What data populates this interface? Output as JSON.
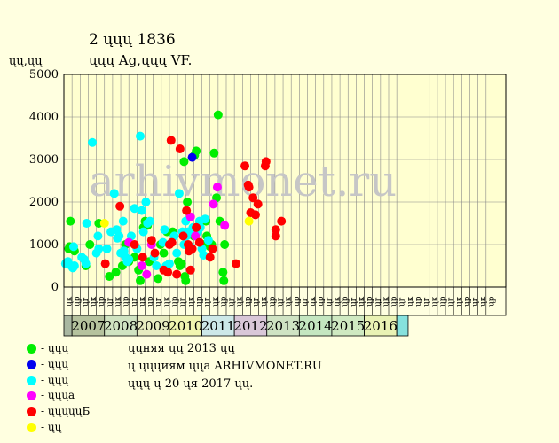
{
  "header": {
    "title": "2 ųųų 1836",
    "subtitle": "ųųų Ag,ųųų VF."
  },
  "chart_data": {
    "type": "scatter",
    "ylabel": "ųų,ųų",
    "ylim": [
      0,
      5000
    ],
    "yticks": [
      0,
      1000,
      2000,
      3000,
      4000,
      5000
    ],
    "watermark": "arhivmonet.ru",
    "grid": true,
    "month_labels": [
      "ųк",
      "ųр",
      "ųг",
      "ųк",
      "ųр",
      "ųг",
      "ųк",
      "ųр",
      "ųг",
      "ųк",
      "ųр",
      "ųг",
      "ųк",
      "ųр",
      "ųг",
      "ųк",
      "ųр",
      "ųг",
      "ųк",
      "ųр",
      "ųг",
      "ųк",
      "ųр",
      "ųг",
      "ųк",
      "ųр",
      "ųг",
      "ųк",
      "ųр",
      "ųг",
      "ųк",
      "ųр",
      "ųг",
      "ųк",
      "ųр",
      "ųг",
      "ųк",
      "ųр",
      "ųг",
      "ųк",
      "ųр",
      "ųг",
      "ųк",
      "ųр",
      "ųг",
      "ųк",
      "ųр",
      "ųг",
      "ųк",
      "ųр",
      "ųг",
      "ųк",
      "ųр"
    ],
    "year_bands": [
      {
        "label": "",
        "from": 0,
        "to": 1,
        "color": "#a9b7a1"
      },
      {
        "label": "2007",
        "from": 1,
        "to": 5,
        "color": "#b5c29e"
      },
      {
        "label": "2008",
        "from": 5,
        "to": 9,
        "color": "#cfe3c1"
      },
      {
        "label": "2009",
        "from": 9,
        "to": 13,
        "color": "#e6ebc0"
      },
      {
        "label": "2010",
        "from": 13,
        "to": 17,
        "color": "#f1f5b0"
      },
      {
        "label": "2011",
        "from": 17,
        "to": 21,
        "color": "#cde8e8"
      },
      {
        "label": "2012",
        "from": 21,
        "to": 25,
        "color": "#d9c7d8"
      },
      {
        "label": "2013",
        "from": 25,
        "to": 29,
        "color": "#cfe3c3"
      },
      {
        "label": "2014",
        "from": 29,
        "to": 33,
        "color": "#c4e6c0"
      },
      {
        "label": "2015",
        "from": 33,
        "to": 37,
        "color": "#cfe9c1"
      },
      {
        "label": "2016",
        "from": 37,
        "to": 41,
        "color": "#e9f2b4"
      },
      {
        "label": "",
        "from": 41,
        "to": 42.4,
        "color": "#86e1dd"
      }
    ],
    "series": [
      {
        "name": "- ųųų",
        "color": "#00ee00",
        "points": [
          [
            0.6,
            900
          ],
          [
            0.7,
            950
          ],
          [
            0.8,
            1550
          ],
          [
            1.3,
            850
          ],
          [
            2.7,
            500
          ],
          [
            3.2,
            1000
          ],
          [
            4.3,
            1500
          ],
          [
            5.6,
            250
          ],
          [
            6.4,
            350
          ],
          [
            7.2,
            500
          ],
          [
            7.6,
            1000
          ],
          [
            8.0,
            600
          ],
          [
            8.7,
            700
          ],
          [
            9.2,
            400
          ],
          [
            9.4,
            150
          ],
          [
            9.8,
            1400
          ],
          [
            10.0,
            1550
          ],
          [
            10.3,
            1450
          ],
          [
            10.5,
            600
          ],
          [
            11.6,
            200
          ],
          [
            11.9,
            1000
          ],
          [
            12.3,
            800
          ],
          [
            12.7,
            1300
          ],
          [
            13.4,
            1300
          ],
          [
            14.1,
            600
          ],
          [
            14.3,
            500
          ],
          [
            14.5,
            550
          ],
          [
            14.8,
            2950
          ],
          [
            14.9,
            250
          ],
          [
            15.0,
            150
          ],
          [
            15.2,
            2000
          ],
          [
            15.5,
            900
          ],
          [
            15.7,
            1300
          ],
          [
            16.0,
            1200
          ],
          [
            16.1,
            3100
          ],
          [
            16.3,
            3200
          ],
          [
            17.1,
            1000
          ],
          [
            17.5,
            1550
          ],
          [
            17.6,
            1200
          ],
          [
            17.9,
            1050
          ],
          [
            18.0,
            950
          ],
          [
            18.2,
            1000
          ],
          [
            18.5,
            3150
          ],
          [
            18.8,
            2100
          ],
          [
            19.0,
            4050
          ],
          [
            19.2,
            1550
          ],
          [
            19.6,
            350
          ],
          [
            19.7,
            150
          ],
          [
            19.8,
            1000
          ]
        ]
      },
      {
        "name": "- ųųų",
        "color": "#0000ee",
        "points": [
          [
            15.8,
            3050
          ]
        ]
      },
      {
        "name": "- ųųų",
        "color": "#00ffff",
        "points": [
          [
            0.2,
            550
          ],
          [
            0.5,
            600
          ],
          [
            0.9,
            500
          ],
          [
            1.1,
            450
          ],
          [
            1.2,
            950
          ],
          [
            1.3,
            500
          ],
          [
            2.2,
            700
          ],
          [
            2.5,
            650
          ],
          [
            2.7,
            550
          ],
          [
            2.8,
            1500
          ],
          [
            3.5,
            3400
          ],
          [
            4.0,
            800
          ],
          [
            4.2,
            1200
          ],
          [
            4.3,
            900
          ],
          [
            5.3,
            900
          ],
          [
            5.8,
            1300
          ],
          [
            6.2,
            2200
          ],
          [
            6.5,
            1350
          ],
          [
            6.6,
            1150
          ],
          [
            6.8,
            1200
          ],
          [
            7.0,
            800
          ],
          [
            7.3,
            1550
          ],
          [
            7.4,
            850
          ],
          [
            7.6,
            700
          ],
          [
            7.8,
            600
          ],
          [
            8.0,
            650
          ],
          [
            8.3,
            1200
          ],
          [
            8.7,
            1850
          ],
          [
            9.0,
            900
          ],
          [
            9.4,
            3550
          ],
          [
            9.6,
            1800
          ],
          [
            9.8,
            1300
          ],
          [
            10.1,
            2000
          ],
          [
            10.3,
            1500
          ],
          [
            10.6,
            1550
          ],
          [
            11.1,
            700
          ],
          [
            11.4,
            500
          ],
          [
            12.2,
            1050
          ],
          [
            12.4,
            1350
          ],
          [
            12.6,
            500
          ],
          [
            13.0,
            550
          ],
          [
            13.6,
            1200
          ],
          [
            13.9,
            800
          ],
          [
            14.2,
            2200
          ],
          [
            14.6,
            1300
          ],
          [
            14.8,
            1000
          ],
          [
            15.0,
            1550
          ],
          [
            15.1,
            1200
          ],
          [
            15.3,
            1300
          ],
          [
            15.6,
            950
          ],
          [
            15.9,
            1400
          ],
          [
            16.2,
            1250
          ],
          [
            16.5,
            1300
          ],
          [
            16.7,
            1550
          ],
          [
            16.8,
            1400
          ],
          [
            17.0,
            900
          ],
          [
            17.2,
            750
          ],
          [
            17.4,
            1600
          ],
          [
            17.8,
            1100
          ]
        ]
      },
      {
        "name": "- ųųųа",
        "color": "#ff00ff",
        "points": [
          [
            8.0,
            1050
          ],
          [
            9.6,
            500
          ],
          [
            10.2,
            300
          ],
          [
            10.8,
            1000
          ],
          [
            15.6,
            1650
          ],
          [
            16.2,
            1200
          ],
          [
            18.4,
            1950
          ],
          [
            18.9,
            2350
          ],
          [
            19.8,
            1450
          ]
        ]
      },
      {
        "name": "- ųųųųųБ",
        "color": "#ff0000",
        "points": [
          [
            5.1,
            550
          ],
          [
            6.9,
            1900
          ],
          [
            8.7,
            1000
          ],
          [
            9.7,
            700
          ],
          [
            10.8,
            1100
          ],
          [
            11.2,
            800
          ],
          [
            12.3,
            400
          ],
          [
            12.8,
            350
          ],
          [
            13.0,
            1000
          ],
          [
            13.2,
            3450
          ],
          [
            13.3,
            1050
          ],
          [
            13.9,
            300
          ],
          [
            14.3,
            3250
          ],
          [
            14.7,
            1200
          ],
          [
            15.1,
            1800
          ],
          [
            15.3,
            1000
          ],
          [
            15.4,
            850
          ],
          [
            15.6,
            400
          ],
          [
            15.8,
            900
          ],
          [
            16.3,
            1400
          ],
          [
            16.7,
            1050
          ],
          [
            18.0,
            700
          ],
          [
            18.3,
            900
          ],
          [
            21.2,
            550
          ],
          [
            22.3,
            2850
          ],
          [
            22.7,
            2400
          ],
          [
            22.8,
            2350
          ],
          [
            23.0,
            1750
          ],
          [
            23.3,
            2100
          ],
          [
            23.6,
            1700
          ],
          [
            23.9,
            1950
          ],
          [
            24.8,
            2850
          ],
          [
            24.9,
            2950
          ],
          [
            26.1,
            1350
          ],
          [
            26.1,
            1200
          ],
          [
            26.8,
            1550
          ]
        ]
      },
      {
        "name": "- ųų",
        "color": "#ffff00",
        "points": [
          [
            5.0,
            1500
          ],
          [
            22.8,
            1550
          ]
        ]
      }
    ]
  },
  "notes": [
    "ųųняя ųų 2013 ųų",
    "ų ųųųиям ųųа ARHIVMONET.RU",
    "ųųų ų 20 ųя 2017 ųų."
  ]
}
